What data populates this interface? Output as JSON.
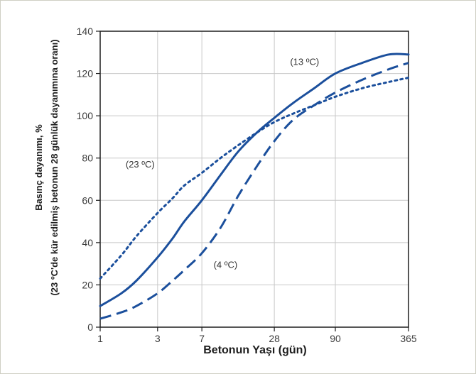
{
  "chart_data": {
    "type": "line",
    "xlabel": "Betonun Yaşı (gün)",
    "ylabel_line1": "Basınç dayanımı, %",
    "ylabel_line2": "(23 ºC'de kür edilmiş betonun 28 günlük dayanımına oranı)",
    "x_scale": "log",
    "x_ticks": [
      1,
      3,
      7,
      28,
      90,
      365
    ],
    "x_tick_labels": [
      "1",
      "3",
      "7",
      "28",
      "90",
      "365"
    ],
    "xlim": [
      1,
      365
    ],
    "ylim": [
      0,
      140
    ],
    "y_ticks": [
      0,
      20,
      40,
      60,
      80,
      100,
      120,
      140
    ],
    "y_tick_labels": [
      "0",
      "20",
      "40",
      "60",
      "80",
      "100",
      "120",
      "140"
    ],
    "grid": true,
    "line_color": "#1b4f9c",
    "series": [
      {
        "style": "solid",
        "label": "(13 ºC)",
        "x": [
          1,
          1.5,
          2,
          3,
          4,
          5,
          7,
          10,
          14,
          20,
          28,
          40,
          60,
          90,
          150,
          250,
          365
        ],
        "y": [
          10,
          16,
          22,
          33,
          42,
          50,
          60,
          72,
          83,
          92,
          99,
          106,
          113,
          120,
          125,
          129,
          129
        ]
      },
      {
        "style": "dotted",
        "label": "(23 ºC)",
        "x": [
          1,
          1.5,
          2,
          3,
          4,
          5,
          7,
          10,
          14,
          20,
          28,
          40,
          60,
          90,
          150,
          250,
          365
        ],
        "y": [
          23,
          34,
          43,
          54,
          61,
          67,
          73,
          80,
          86,
          92,
          97,
          101,
          105,
          109,
          113,
          116,
          118
        ]
      },
      {
        "style": "dashed",
        "label": "(4 ºC)",
        "x": [
          1,
          1.5,
          2,
          3,
          4,
          5,
          7,
          10,
          14,
          20,
          28,
          40,
          60,
          90,
          150,
          250,
          365
        ],
        "y": [
          4,
          7,
          10,
          16,
          22,
          27,
          35,
          47,
          62,
          76,
          88,
          98,
          105,
          111,
          117,
          122,
          125
        ]
      }
    ],
    "annotations": [
      {
        "text": "(13 ºC)",
        "x": 50,
        "y": 124
      },
      {
        "text": "(23 ºC)",
        "x": 2.15,
        "y": 75.5
      },
      {
        "text": "(4 ºC)",
        "x": 11,
        "y": 28
      }
    ]
  }
}
